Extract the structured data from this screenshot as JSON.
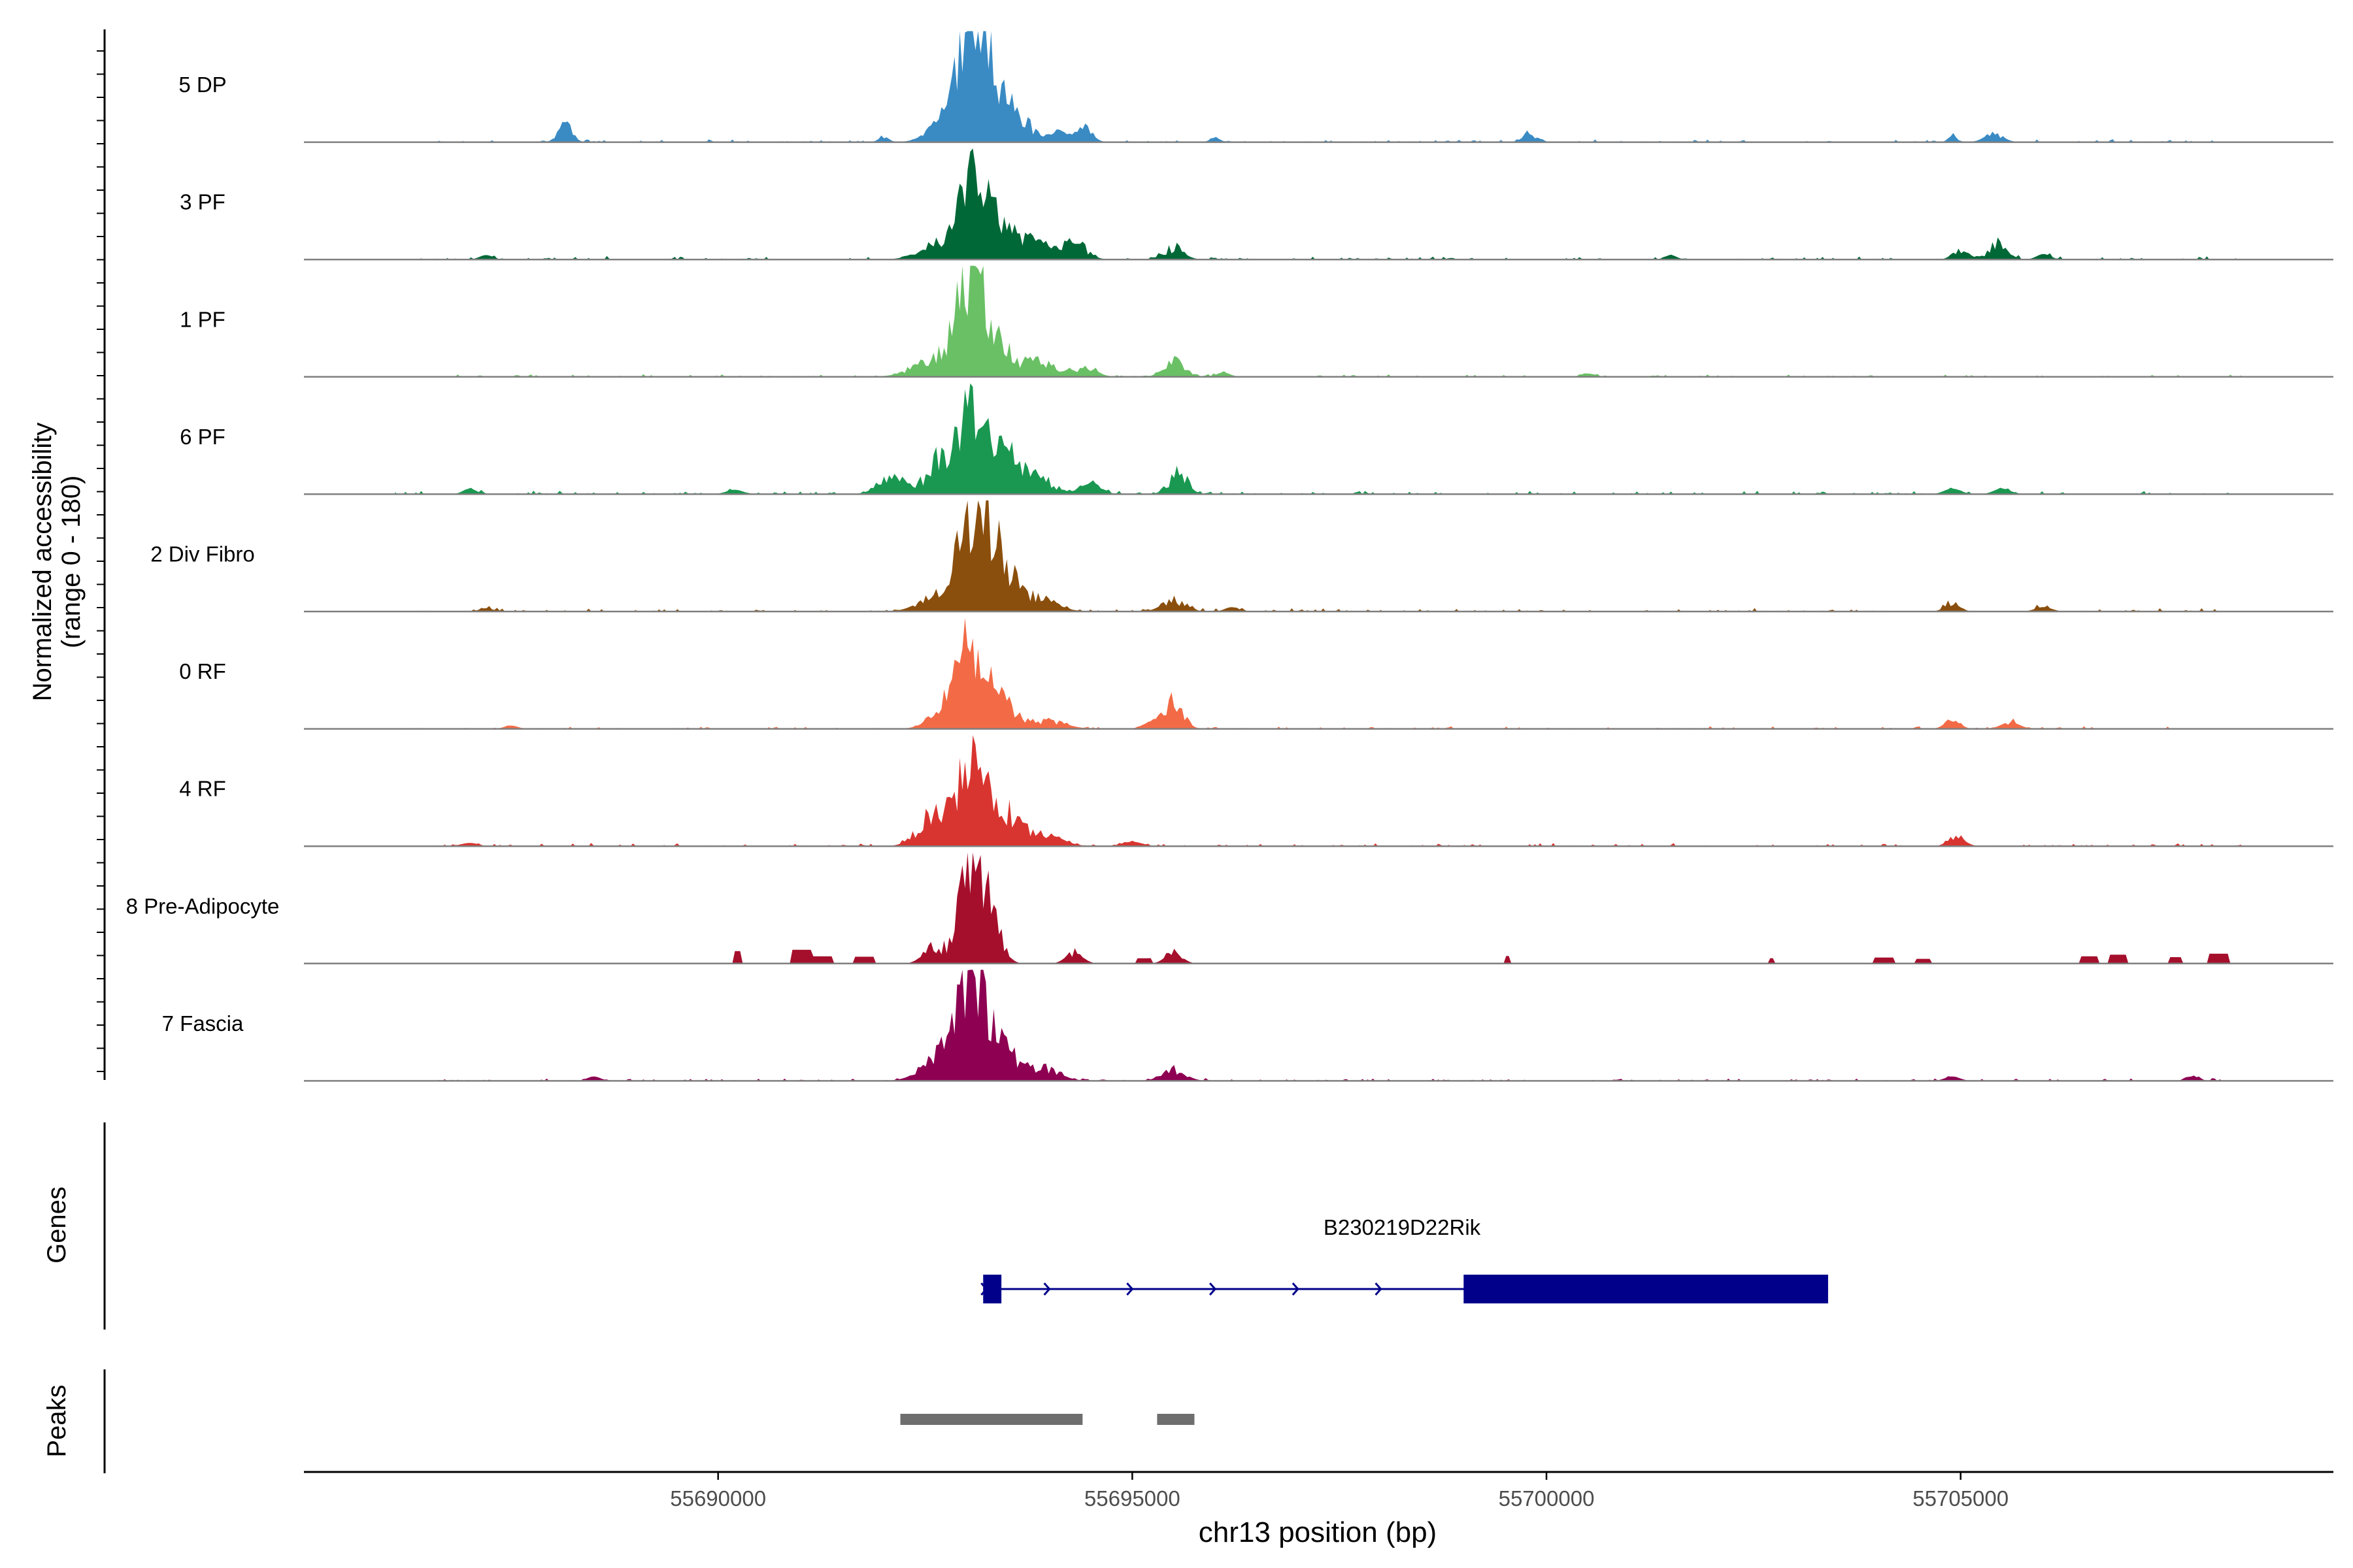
{
  "chart_data": {
    "type": "area",
    "title": "",
    "ylabel": "Normalized accessibility",
    "ylabel_sub": "(range 0 - 180)",
    "y_range": [
      0,
      180
    ],
    "xlabel": "chr13 position (bp)",
    "x_range": [
      55685000,
      55709500
    ],
    "x_ticks": [
      55690000,
      55695000,
      55700000,
      55705000
    ],
    "x_tick_labels": [
      "55690000",
      "55695000",
      "55700000",
      "55705000"
    ],
    "track_extent": [
      55686100,
      55708400
    ],
    "tracks": [
      {
        "name": "5 DP",
        "color": "#3a8bc4",
        "peaks": [
          [
            55693030,
            0.96,
            160
          ],
          [
            55693200,
            0.55,
            160
          ],
          [
            55693550,
            0.25,
            200
          ],
          [
            55692700,
            0.15,
            180
          ],
          [
            55688150,
            0.18,
            80
          ],
          [
            55694400,
            0.15,
            100
          ],
          [
            55694100,
            0.08,
            80
          ],
          [
            55699800,
            0.08,
            80
          ],
          [
            55705400,
            0.08,
            110
          ],
          [
            55704900,
            0.06,
            50
          ],
          [
            55692000,
            0.05,
            60
          ],
          [
            55696000,
            0.04,
            60
          ]
        ],
        "noise": 0.02,
        "seed": 11
      },
      {
        "name": "3 PF",
        "color": "#006837",
        "peaks": [
          [
            55693080,
            0.72,
            160
          ],
          [
            55693350,
            0.3,
            180
          ],
          [
            55693800,
            0.15,
            200
          ],
          [
            55692600,
            0.12,
            200
          ],
          [
            55694300,
            0.15,
            140
          ],
          [
            55695500,
            0.1,
            120
          ],
          [
            55705450,
            0.15,
            110
          ],
          [
            55705000,
            0.1,
            90
          ],
          [
            55706000,
            0.05,
            80
          ],
          [
            55687200,
            0.04,
            80
          ],
          [
            55701500,
            0.04,
            70
          ]
        ],
        "noise": 0.025,
        "seed": 23
      },
      {
        "name": "1 PF",
        "color": "#6ac065",
        "peaks": [
          [
            55693050,
            0.78,
            160
          ],
          [
            55693350,
            0.3,
            180
          ],
          [
            55692700,
            0.18,
            280
          ],
          [
            55693900,
            0.14,
            200
          ],
          [
            55694450,
            0.09,
            120
          ],
          [
            55695500,
            0.14,
            120
          ],
          [
            55696100,
            0.04,
            80
          ],
          [
            55700500,
            0.03,
            80
          ]
        ],
        "noise": 0.02,
        "seed": 37
      },
      {
        "name": "6 PF",
        "color": "#1a9851",
        "peaks": [
          [
            55693050,
            0.7,
            150
          ],
          [
            55692700,
            0.32,
            160
          ],
          [
            55693380,
            0.45,
            160
          ],
          [
            55693800,
            0.18,
            200
          ],
          [
            55692100,
            0.15,
            160
          ],
          [
            55695550,
            0.18,
            110
          ],
          [
            55694500,
            0.1,
            120
          ],
          [
            55690200,
            0.04,
            100
          ],
          [
            55704900,
            0.05,
            100
          ],
          [
            55705500,
            0.05,
            100
          ],
          [
            55687000,
            0.05,
            80
          ]
        ],
        "noise": 0.025,
        "seed": 51
      },
      {
        "name": "2 Div Fibro",
        "color": "#8b4f0d",
        "peaks": [
          [
            55693100,
            0.82,
            170
          ],
          [
            55693400,
            0.4,
            190
          ],
          [
            55692700,
            0.2,
            220
          ],
          [
            55693900,
            0.1,
            200
          ],
          [
            55695500,
            0.1,
            140
          ],
          [
            55696200,
            0.04,
            80
          ],
          [
            55704900,
            0.07,
            90
          ],
          [
            55706000,
            0.04,
            100
          ],
          [
            55687200,
            0.03,
            80
          ]
        ],
        "noise": 0.025,
        "seed": 67
      },
      {
        "name": "0 RF",
        "color": "#f26b46",
        "peaks": [
          [
            55693050,
            0.68,
            160
          ],
          [
            55693400,
            0.25,
            180
          ],
          [
            55692800,
            0.2,
            200
          ],
          [
            55694000,
            0.07,
            200
          ],
          [
            55695500,
            0.26,
            110
          ],
          [
            55695200,
            0.05,
            90
          ],
          [
            55704900,
            0.08,
            90
          ],
          [
            55705600,
            0.06,
            110
          ],
          [
            55687500,
            0.03,
            80
          ]
        ],
        "noise": 0.018,
        "seed": 79
      },
      {
        "name": "4 RF",
        "color": "#d93530",
        "peaks": [
          [
            55693050,
            0.7,
            160
          ],
          [
            55692600,
            0.27,
            180
          ],
          [
            55693450,
            0.3,
            200
          ],
          [
            55693950,
            0.1,
            200
          ],
          [
            55695000,
            0.04,
            120
          ],
          [
            55704950,
            0.08,
            100
          ],
          [
            55687000,
            0.03,
            100
          ]
        ],
        "noise": 0.022,
        "seed": 97
      },
      {
        "name": "8 Pre-Adipocyte",
        "color": "#a50f2c",
        "peaks": [
          [
            55693050,
            0.82,
            140
          ],
          [
            55693300,
            0.35,
            120
          ],
          [
            55692600,
            0.15,
            120
          ],
          [
            55694300,
            0.1,
            100
          ],
          [
            55695500,
            0.1,
            100
          ]
        ],
        "noise": 0.06,
        "seed": 103,
        "sparse": true
      },
      {
        "name": "7 Fascia",
        "color": "#8e0152",
        "peaks": [
          [
            55693050,
            0.9,
            170
          ],
          [
            55693400,
            0.3,
            180
          ],
          [
            55692700,
            0.22,
            220
          ],
          [
            55693900,
            0.12,
            200
          ],
          [
            55695500,
            0.1,
            140
          ],
          [
            55688500,
            0.04,
            80
          ],
          [
            55704900,
            0.04,
            90
          ],
          [
            55707800,
            0.04,
            80
          ]
        ],
        "noise": 0.02,
        "seed": 131
      }
    ],
    "genes_label": "Genes",
    "gene": {
      "name": "B230219D22Rik",
      "start": 55693200,
      "end": 55703400,
      "strand": "+",
      "exons": [
        [
          55693200,
          55693420
        ],
        [
          55699000,
          55703400
        ]
      ],
      "color": "#00008b"
    },
    "peaks_label": "Peaks",
    "peak_regions": [
      [
        55692200,
        55694400
      ],
      [
        55695300,
        55695750
      ]
    ],
    "peak_color": "#6e6e6e"
  }
}
